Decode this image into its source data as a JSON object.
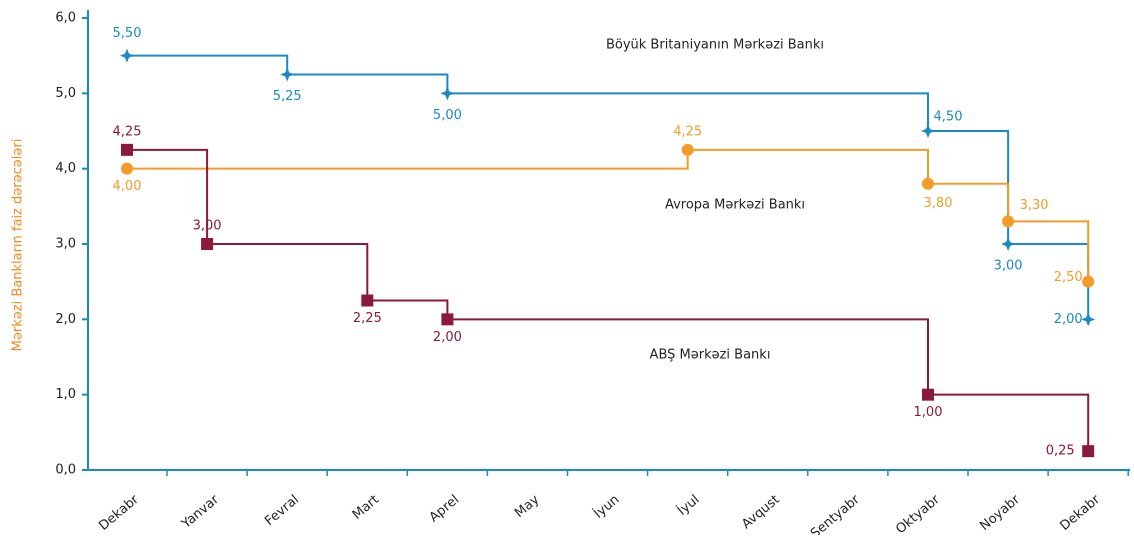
{
  "chart_data": {
    "type": "step",
    "y_label": "Mərkəzi Bankların faiz dərəcələri",
    "categories": [
      "Dekabr",
      "Yanvar",
      "Fevral",
      "Mart",
      "Aprel",
      "May",
      "İyun",
      "İyul",
      "Avqust",
      "Sentyabr",
      "Oktyabr",
      "Noyabr",
      "Dekabr"
    ],
    "ylim": [
      0,
      6
    ],
    "yticks": [
      {
        "value": 0,
        "label": "0,0"
      },
      {
        "value": 1,
        "label": "1,0"
      },
      {
        "value": 2,
        "label": "2,0"
      },
      {
        "value": 3,
        "label": "3,0"
      },
      {
        "value": 4,
        "label": "4,0"
      },
      {
        "value": 5,
        "label": "5,0"
      },
      {
        "value": 6,
        "label": "6,0"
      }
    ],
    "series": [
      {
        "name": "Böyük Britaniyanın Mərkəzi Bankı",
        "color": "#1a8ac6",
        "marker": "star",
        "values": [
          5.5,
          null,
          5.25,
          null,
          5.0,
          null,
          null,
          null,
          null,
          null,
          4.5,
          3.0,
          2.0
        ],
        "value_labels": [
          "5,50",
          null,
          "5,25",
          null,
          "5,00",
          null,
          null,
          null,
          null,
          null,
          "4,50",
          "3,00",
          "2,00"
        ]
      },
      {
        "name": "Avropa Mərkəzi Bankı",
        "color": "#f59c28",
        "marker": "circle",
        "values": [
          4.0,
          null,
          null,
          null,
          null,
          null,
          null,
          4.25,
          null,
          null,
          3.8,
          3.3,
          2.5
        ],
        "value_labels": [
          "4,00",
          null,
          null,
          null,
          null,
          null,
          null,
          "4,25",
          null,
          null,
          "3,80",
          "3,30",
          "2,50"
        ]
      },
      {
        "name": "ABŞ Mərkəzi Bankı",
        "color": "#8b1a3a",
        "marker": "square",
        "values": [
          4.25,
          3.0,
          null,
          2.25,
          2.0,
          null,
          null,
          null,
          null,
          null,
          1.0,
          null,
          0.25
        ],
        "value_labels": [
          "4,25",
          "3,00",
          null,
          "2,25",
          "2,00",
          null,
          null,
          null,
          null,
          null,
          "1,00",
          null,
          "0,25"
        ]
      }
    ]
  }
}
